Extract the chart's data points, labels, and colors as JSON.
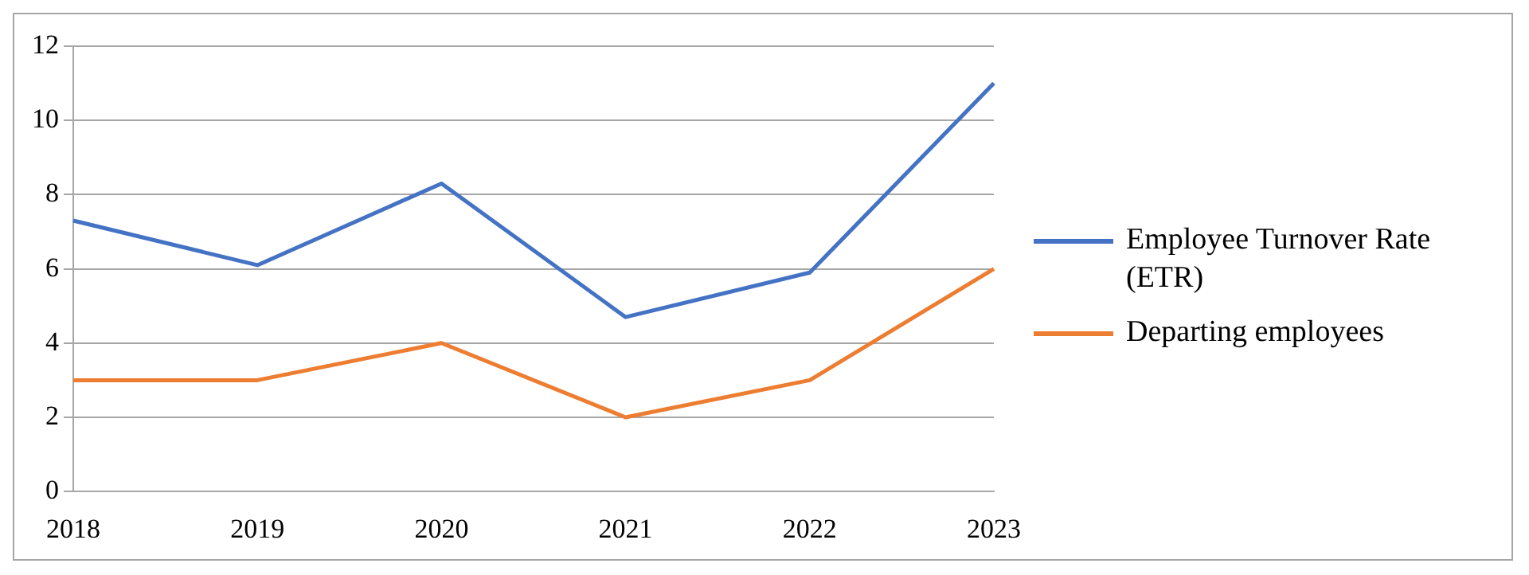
{
  "chart_data": {
    "type": "line",
    "categories": [
      "2018",
      "2019",
      "2020",
      "2021",
      "2022",
      "2023"
    ],
    "series": [
      {
        "name": "Employee Turnover Rate (ETR)",
        "color": "#4472c4",
        "values": [
          7.3,
          6.1,
          8.3,
          4.7,
          5.9,
          11
        ]
      },
      {
        "name": "Departing employees",
        "color": "#ed7d31",
        "values": [
          3,
          3,
          4,
          2,
          3,
          6
        ]
      }
    ],
    "ylim": [
      0,
      12
    ],
    "yticks": [
      0,
      2,
      4,
      6,
      8,
      10,
      12
    ],
    "grid": "y",
    "legend": "right",
    "marker": "none",
    "line_style": "solid"
  }
}
